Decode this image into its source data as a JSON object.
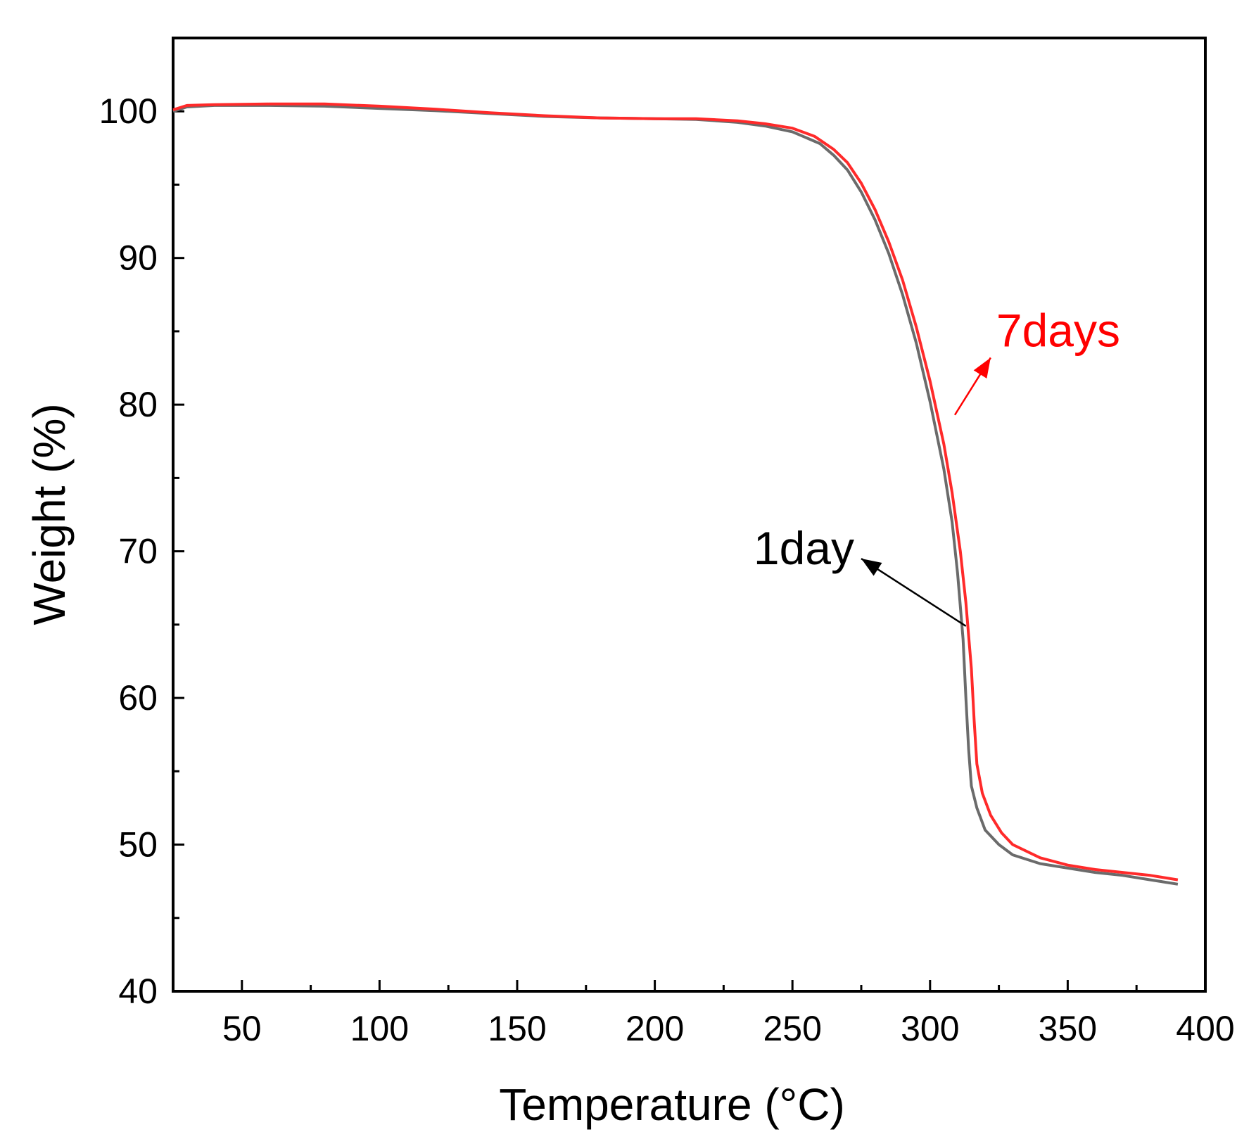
{
  "chart_data": {
    "type": "line",
    "title": "",
    "xlabel": "Temperature (°C)",
    "ylabel": "Weight (%)",
    "xlim": [
      25,
      400
    ],
    "ylim": [
      40,
      105
    ],
    "x_ticks": [
      50,
      100,
      150,
      200,
      250,
      300,
      350,
      400
    ],
    "x_tick_labels": [
      "50",
      "100",
      "150",
      "200",
      "250",
      "300",
      "350",
      "400"
    ],
    "y_ticks": [
      40,
      50,
      60,
      70,
      80,
      90,
      100
    ],
    "y_tick_labels": [
      "40",
      "50",
      "60",
      "70",
      "80",
      "90",
      "100"
    ],
    "grid": false,
    "legend": "none",
    "series": [
      {
        "name": "1day",
        "color": "#6b6b6b",
        "points": [
          [
            25,
            100.0
          ],
          [
            30,
            100.3
          ],
          [
            40,
            100.4
          ],
          [
            60,
            100.4
          ],
          [
            80,
            100.35
          ],
          [
            100,
            100.2
          ],
          [
            120,
            100.05
          ],
          [
            140,
            99.85
          ],
          [
            160,
            99.65
          ],
          [
            180,
            99.55
          ],
          [
            200,
            99.5
          ],
          [
            215,
            99.45
          ],
          [
            230,
            99.25
          ],
          [
            240,
            99.0
          ],
          [
            250,
            98.6
          ],
          [
            260,
            97.8
          ],
          [
            265,
            97.0
          ],
          [
            270,
            96.0
          ],
          [
            275,
            94.5
          ],
          [
            280,
            92.6
          ],
          [
            285,
            90.3
          ],
          [
            290,
            87.5
          ],
          [
            295,
            84.2
          ],
          [
            300,
            80.2
          ],
          [
            305,
            75.6
          ],
          [
            308,
            72.0
          ],
          [
            310,
            68.5
          ],
          [
            312,
            64.0
          ],
          [
            313,
            60.0
          ],
          [
            314,
            56.5
          ],
          [
            315,
            54.0
          ],
          [
            317,
            52.5
          ],
          [
            320,
            51.0
          ],
          [
            325,
            50.0
          ],
          [
            330,
            49.3
          ],
          [
            340,
            48.7
          ],
          [
            350,
            48.4
          ],
          [
            360,
            48.1
          ],
          [
            370,
            47.9
          ],
          [
            380,
            47.6
          ],
          [
            390,
            47.3
          ]
        ]
      },
      {
        "name": "7days",
        "color": "#ff2a2a",
        "points": [
          [
            25,
            100.1
          ],
          [
            30,
            100.4
          ],
          [
            40,
            100.45
          ],
          [
            60,
            100.5
          ],
          [
            80,
            100.5
          ],
          [
            100,
            100.35
          ],
          [
            120,
            100.15
          ],
          [
            140,
            99.9
          ],
          [
            160,
            99.7
          ],
          [
            180,
            99.55
          ],
          [
            200,
            99.5
          ],
          [
            215,
            99.5
          ],
          [
            230,
            99.35
          ],
          [
            240,
            99.15
          ],
          [
            250,
            98.85
          ],
          [
            258,
            98.3
          ],
          [
            265,
            97.4
          ],
          [
            270,
            96.5
          ],
          [
            275,
            95.1
          ],
          [
            280,
            93.3
          ],
          [
            285,
            91.1
          ],
          [
            290,
            88.5
          ],
          [
            295,
            85.3
          ],
          [
            300,
            81.6
          ],
          [
            305,
            77.3
          ],
          [
            308,
            74.0
          ],
          [
            311,
            70.0
          ],
          [
            313,
            66.5
          ],
          [
            315,
            62.0
          ],
          [
            316,
            58.5
          ],
          [
            317,
            55.5
          ],
          [
            319,
            53.5
          ],
          [
            322,
            52.0
          ],
          [
            326,
            50.8
          ],
          [
            330,
            50.0
          ],
          [
            340,
            49.1
          ],
          [
            350,
            48.6
          ],
          [
            360,
            48.3
          ],
          [
            370,
            48.1
          ],
          [
            380,
            47.9
          ],
          [
            390,
            47.6
          ]
        ]
      }
    ],
    "annotations": [
      {
        "text": "7days",
        "color": "#ff0000",
        "arrow_from": [
          309,
          79.3
        ],
        "arrow_to": [
          322,
          83.2
        ]
      },
      {
        "text": "1day",
        "color": "#000000",
        "arrow_from": [
          313,
          64.9
        ],
        "arrow_to": [
          275,
          69.5
        ]
      }
    ]
  }
}
